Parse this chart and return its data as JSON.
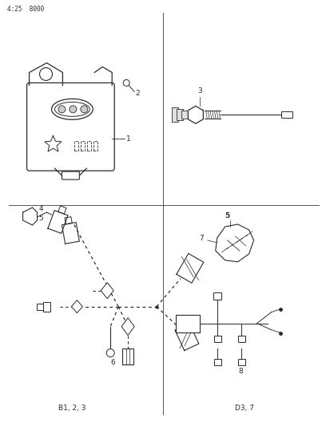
{
  "page_id": "4:25  8000",
  "background_color": "#ffffff",
  "line_color": "#2a2a2a",
  "text_color": "#2a2a2a",
  "divider_color": "#555555",
  "labels": {
    "item1": "1",
    "item2": "2",
    "item3": "3",
    "item4": "4",
    "item5": "5",
    "item6": "6",
    "item7": "7",
    "item8": "8",
    "bottom_left": "B1, 2, 3",
    "bottom_right": "D3, 7"
  },
  "figsize": [
    4.08,
    5.33
  ],
  "dpi": 100
}
